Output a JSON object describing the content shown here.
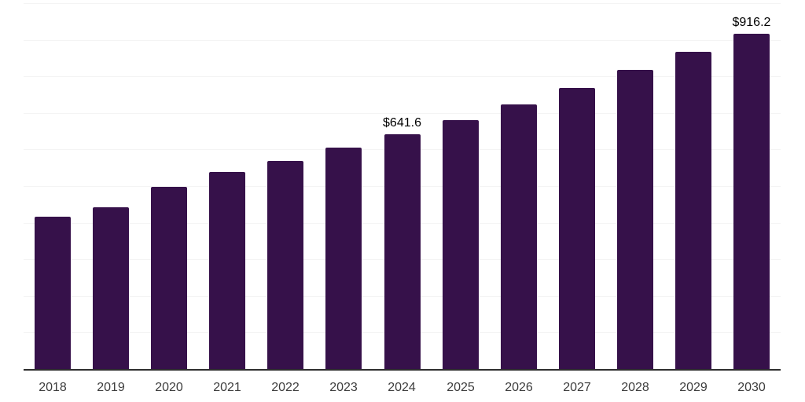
{
  "chart_data": {
    "type": "bar",
    "title": "",
    "xlabel": "",
    "ylabel": "",
    "categories": [
      "2018",
      "2019",
      "2020",
      "2021",
      "2022",
      "2023",
      "2024",
      "2025",
      "2026",
      "2027",
      "2028",
      "2029",
      "2030"
    ],
    "values": [
      417,
      443,
      497,
      538,
      569,
      606,
      641.6,
      680,
      724,
      769,
      817,
      866,
      916.2
    ],
    "data_labels": [
      {
        "category": "2024",
        "text": "$641.6"
      },
      {
        "category": "2030",
        "text": "$916.2"
      }
    ],
    "ylim": [
      0,
      1000
    ],
    "gridline_step": 100,
    "grid": true,
    "legend_position": "none",
    "colors": {
      "bar": "#36114a",
      "gridline": "#f4f4f4",
      "axis_line": "#2e2e2e",
      "tick_label": "#3d3d3d",
      "value_label": "#000000",
      "background": "#ffffff"
    }
  }
}
